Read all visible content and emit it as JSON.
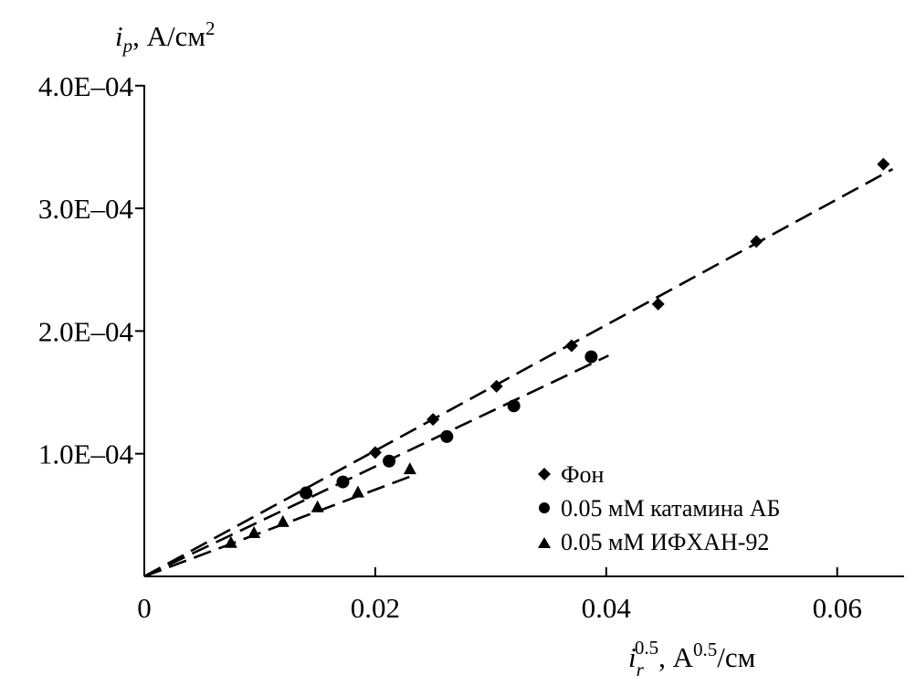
{
  "chart_data": {
    "type": "scatter",
    "ylabel": {
      "main": "i",
      "sub": "p",
      "unit": ", А/см",
      "sup": "2"
    },
    "xlabel": {
      "main": "i",
      "sub": "r",
      "sup": "0.5",
      "unit": ", А",
      "unit_sup": "0.5",
      "unit_tail": "/см"
    },
    "xlim": [
      0,
      0.065
    ],
    "ylim": [
      0,
      0.0004
    ],
    "x_ticks": [
      {
        "value": 0,
        "label": "0"
      },
      {
        "value": 0.02,
        "label": "0.02"
      },
      {
        "value": 0.04,
        "label": "0.04"
      },
      {
        "value": 0.06,
        "label": "0.06"
      }
    ],
    "y_ticks": [
      {
        "value": 0.0001,
        "label": "1.0E–04"
      },
      {
        "value": 0.0002,
        "label": "2.0E–04"
      },
      {
        "value": 0.0003,
        "label": "3.0E–04"
      },
      {
        "value": 0.0004,
        "label": "4.0E–04"
      }
    ],
    "legend_position": "bottom-right",
    "series": [
      {
        "name": "Фон",
        "marker": "diamond",
        "points": [
          [
            0.02,
            0.000101
          ],
          [
            0.025,
            0.000128
          ],
          [
            0.0305,
            0.000155
          ],
          [
            0.037,
            0.000188
          ],
          [
            0.0445,
            0.000222
          ],
          [
            0.053,
            0.000273
          ],
          [
            0.064,
            0.000336
          ]
        ],
        "fit": [
          [
            0,
            0
          ],
          [
            0.0648,
            0.000332
          ]
        ]
      },
      {
        "name": "0.05 мМ катамина АБ",
        "marker": "circle",
        "points": [
          [
            0.014,
            6.8e-05
          ],
          [
            0.0172,
            7.7e-05
          ],
          [
            0.0212,
            9.4e-05
          ],
          [
            0.0262,
            0.000114
          ],
          [
            0.032,
            0.000139
          ],
          [
            0.0387,
            0.000179
          ]
        ],
        "fit": [
          [
            0,
            0
          ],
          [
            0.0402,
            0.00018
          ]
        ]
      },
      {
        "name": "0.05 мМ ИФХАН-92",
        "marker": "triangle",
        "points": [
          [
            0.0075,
            2.7e-05
          ],
          [
            0.0095,
            3.5e-05
          ],
          [
            0.012,
            4.4e-05
          ],
          [
            0.015,
            5.6e-05
          ],
          [
            0.0185,
            6.8e-05
          ],
          [
            0.023,
            8.7e-05
          ]
        ],
        "fit": [
          [
            0,
            0
          ],
          [
            0.0232,
            8.2e-05
          ]
        ]
      }
    ]
  }
}
